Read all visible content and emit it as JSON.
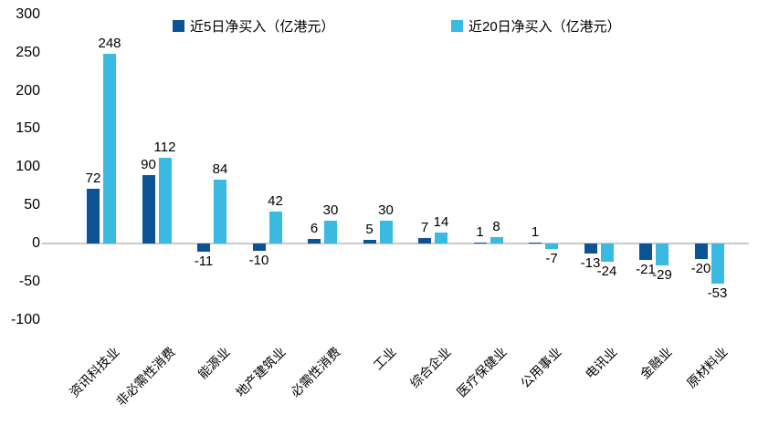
{
  "chart_data": {
    "type": "bar",
    "title": "",
    "categories": [
      "资讯科技业",
      "非必需性消费",
      "能源业",
      "地产建筑业",
      "必需性消费",
      "工业",
      "综合企业",
      "医疗保健业",
      "公用事业",
      "电讯业",
      "金融业",
      "原材料业"
    ],
    "series": [
      {
        "name": "近5日净买入（亿港元）",
        "color": "#0B5394",
        "values": [
          72,
          90,
          -11,
          -10,
          6,
          5,
          7,
          1,
          1,
          -13,
          -21,
          -20
        ]
      },
      {
        "name": "近20日净买入（亿港元）",
        "color": "#3ABAE0",
        "values": [
          248,
          112,
          84,
          42,
          30,
          30,
          14,
          8,
          -7,
          -24,
          -29,
          -53
        ]
      }
    ],
    "xlabel": "",
    "ylabel": "",
    "y_axis": {
      "min": -100,
      "max": 300,
      "ticks": [
        300,
        250,
        200,
        150,
        100,
        50,
        0,
        -50,
        -100
      ]
    },
    "grid": "zero-line-only",
    "legend_position": "top",
    "data_labels": "shown"
  },
  "colors": {
    "series_5day": "#0B5394",
    "series_20day": "#3ABAE0",
    "zero_line": "#C9C9C9",
    "text": "#000000",
    "background": "#FFFFFF"
  }
}
